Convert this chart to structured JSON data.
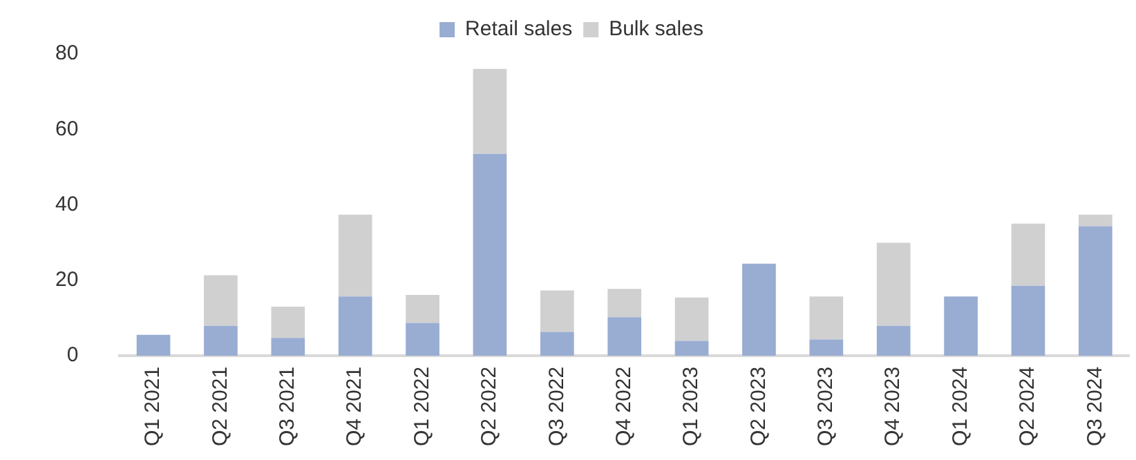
{
  "chart_data": {
    "type": "bar",
    "stacked": true,
    "legend": "top",
    "grid": false,
    "categories": [
      "Q1 2021",
      "Q2 2021",
      "Q3 2021",
      "Q4 2021",
      "Q1 2022",
      "Q2 2022",
      "Q3 2022",
      "Q4 2022",
      "Q1 2023",
      "Q2 2023",
      "Q3 2023",
      "Q4 2023",
      "Q1 2024",
      "Q2 2024",
      "Q3 2024"
    ],
    "series": [
      {
        "name": "Retail sales",
        "color": "#99acd2",
        "values": [
          5.5,
          7.9,
          4.7,
          15.7,
          8.7,
          53.5,
          6.3,
          10.2,
          3.9,
          24.4,
          4.3,
          7.9,
          15.7,
          18.5,
          34.3
        ]
      },
      {
        "name": "Bulk sales",
        "color": "#d0d0d0",
        "values": [
          null,
          13.4,
          8.3,
          21.7,
          7.4,
          22.5,
          11,
          7.5,
          11.5,
          null,
          11.4,
          22,
          null,
          16.5,
          3.1
        ]
      }
    ],
    "ylim": [
      0,
      80
    ],
    "yticks": [
      0,
      20,
      40,
      60,
      80
    ]
  }
}
